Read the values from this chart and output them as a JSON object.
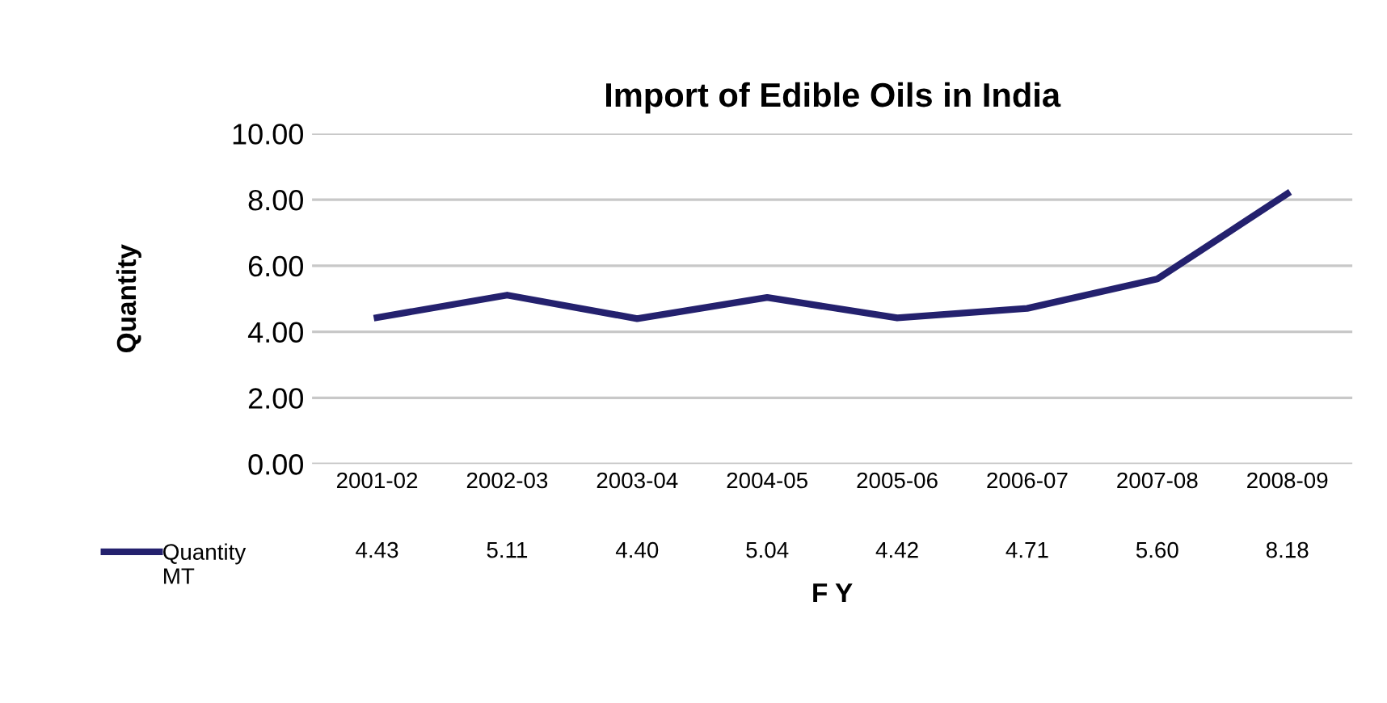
{
  "chart_data": {
    "type": "line",
    "title": "Import of Edible Oils in India",
    "xlabel": "F Y",
    "ylabel": "Quantity",
    "categories": [
      "2001-02",
      "2002-03",
      "2003-04",
      "2004-05",
      "2005-06",
      "2006-07",
      "2007-08",
      "2008-09"
    ],
    "series": [
      {
        "name": "Quantity\nMT",
        "color": "#24216e",
        "values": [
          4.43,
          5.11,
          4.4,
          5.04,
          4.42,
          4.71,
          5.6,
          8.18
        ],
        "value_labels": [
          "4.43",
          "5.11",
          "4.40",
          "5.04",
          "4.42",
          "4.71",
          "5.60",
          "8.18"
        ]
      }
    ],
    "ylim": [
      0,
      10
    ],
    "yticks": [
      {
        "value": 0,
        "label": "0.00"
      },
      {
        "value": 2,
        "label": "2.00"
      },
      {
        "value": 4,
        "label": "4.00"
      },
      {
        "value": 6,
        "label": "6.00"
      },
      {
        "value": 8,
        "label": "8.00"
      },
      {
        "value": 10,
        "label": "10.00"
      }
    ],
    "grid": "y",
    "marker": "none",
    "line_style": "solid"
  }
}
